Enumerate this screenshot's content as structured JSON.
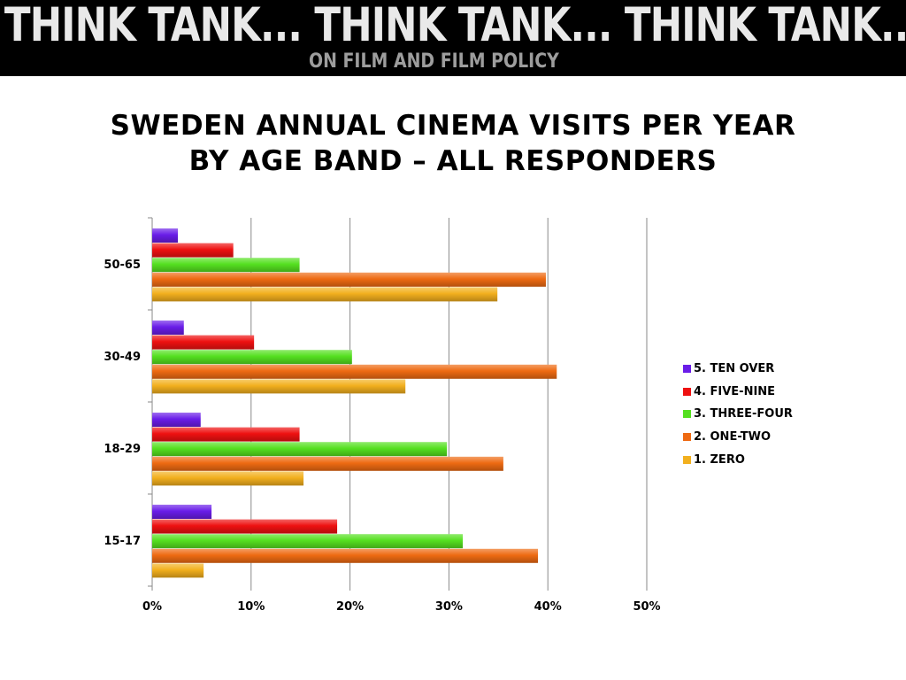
{
  "banner": {
    "headline": "THINK TANK... THINK TANK... THINK TANK...",
    "subtitle": "ON FILM AND FILM POLICY"
  },
  "chart_data": {
    "type": "bar",
    "orientation": "horizontal",
    "title_lines": [
      "SWEDEN ANNUAL CINEMA VISITS PER YEAR",
      "BY AGE BAND – ALL RESPONDERS"
    ],
    "categories": [
      "50-65",
      "30-49",
      "18-29",
      "15-17"
    ],
    "series": [
      {
        "name": "5. TEN OVER",
        "color": "#6a1de8",
        "values": [
          2.6,
          3.2,
          4.9,
          6.0
        ]
      },
      {
        "name": "4. FIVE-NINE",
        "color": "#ee1111",
        "values": [
          8.2,
          10.3,
          14.9,
          18.7
        ]
      },
      {
        "name": "3. THREE-FOUR",
        "color": "#55e020",
        "values": [
          14.9,
          20.2,
          29.8,
          31.4
        ]
      },
      {
        "name": "2. ONE-TWO",
        "color": "#ee6a12",
        "values": [
          39.8,
          40.9,
          35.5,
          39.0
        ]
      },
      {
        "name": "1. ZERO",
        "color": "#f2b01e",
        "values": [
          34.9,
          25.6,
          15.3,
          5.2
        ]
      }
    ],
    "xlim": [
      0,
      50
    ],
    "xticks": [
      "0%",
      "10%",
      "20%",
      "30%",
      "40%",
      "50%"
    ],
    "grid": true,
    "legend_position": "right"
  }
}
